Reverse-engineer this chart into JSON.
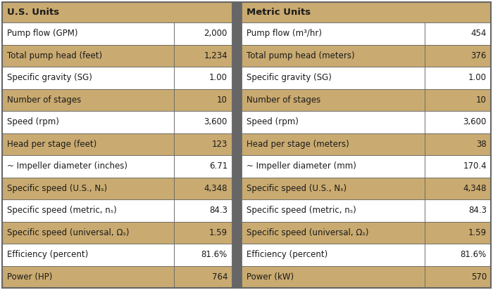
{
  "us_header": "U.S. Units",
  "metric_header": "Metric Units",
  "rows": [
    {
      "us_label": "Pump flow (GPM)",
      "us_value": "2,000",
      "metric_label": "Pump flow (m³/hr)",
      "metric_value": "454",
      "shaded": false
    },
    {
      "us_label": "Total pump head (feet)",
      "us_value": "1,234",
      "metric_label": "Total pump head (meters)",
      "metric_value": "376",
      "shaded": true
    },
    {
      "us_label": "Specific gravity (SG)",
      "us_value": "1.00",
      "metric_label": "Specific gravity (SG)",
      "metric_value": "1.00",
      "shaded": false
    },
    {
      "us_label": "Number of stages",
      "us_value": "10",
      "metric_label": "Number of stages",
      "metric_value": "10",
      "shaded": true
    },
    {
      "us_label": "Speed (rpm)",
      "us_value": "3,600",
      "metric_label": "Speed (rpm)",
      "metric_value": "3,600",
      "shaded": false
    },
    {
      "us_label": "Head per stage (feet)",
      "us_value": "123",
      "metric_label": "Head per stage (meters)",
      "metric_value": "38",
      "shaded": true
    },
    {
      "us_label": "~ Impeller diameter (inches)",
      "us_value": "6.71",
      "metric_label": "~ Impeller diameter (mm)",
      "metric_value": "170.4",
      "shaded": false
    },
    {
      "us_label": "Specific speed (U.S., Nₛ)",
      "us_value": "4,348",
      "metric_label": "Specific speed (U.S., Nₛ)",
      "metric_value": "4,348",
      "shaded": true
    },
    {
      "us_label": "Specific speed (metric, nₛ)",
      "us_value": "84.3",
      "metric_label": "Specific speed (metric, nₛ)",
      "metric_value": "84.3",
      "shaded": false
    },
    {
      "us_label": "Specific speed (universal, Ωₛ)",
      "us_value": "1.59",
      "metric_label": "Specific speed (universal, Ωₛ)",
      "metric_value": "1.59",
      "shaded": true
    },
    {
      "us_label": "Efficiency (percent)",
      "us_value": "81.6%",
      "metric_label": "Efficiency (percent)",
      "metric_value": "81.6%",
      "shaded": false
    },
    {
      "us_label": "Power (HP)",
      "us_value": "764",
      "metric_label": "Power (kW)",
      "metric_value": "570",
      "shaded": true
    }
  ],
  "color_shaded": "#C9AA70",
  "color_white": "#FFFFFF",
  "color_divider": "#666666",
  "color_border": "#666666",
  "color_text": "#1a1a1a"
}
